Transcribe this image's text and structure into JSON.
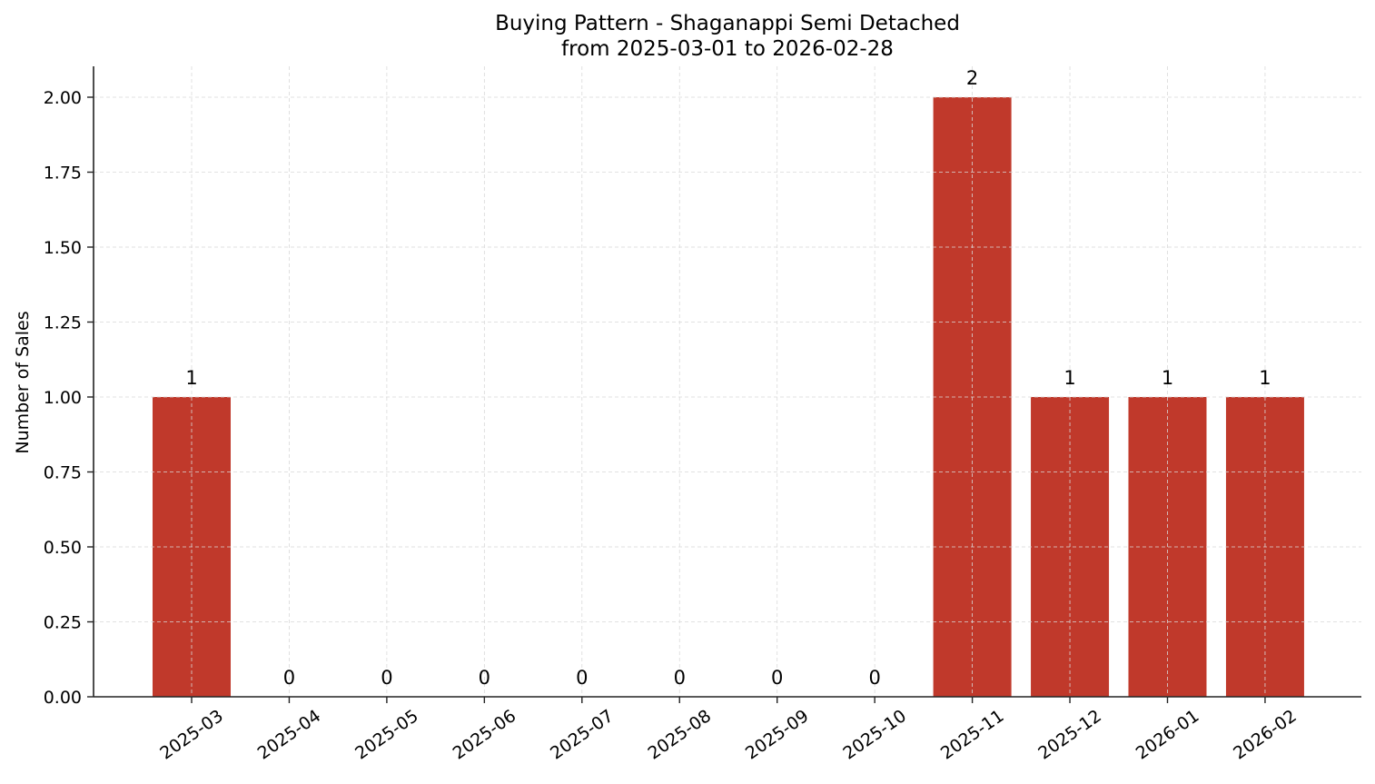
{
  "chart_data": {
    "type": "bar",
    "title": "Buying Pattern - Shaganappi Semi Detached",
    "subtitle": "from 2025-03-01 to 2026-02-28",
    "xlabel": "",
    "ylabel": "Number of Sales",
    "categories": [
      "2025-03",
      "2025-04",
      "2025-05",
      "2025-06",
      "2025-07",
      "2025-08",
      "2025-09",
      "2025-10",
      "2025-11",
      "2025-12",
      "2026-01",
      "2026-02"
    ],
    "values": [
      1,
      0,
      0,
      0,
      0,
      0,
      0,
      0,
      2,
      1,
      1,
      1
    ],
    "data_labels": [
      "1",
      "0",
      "0",
      "0",
      "0",
      "0",
      "0",
      "0",
      "2",
      "1",
      "1",
      "1"
    ],
    "ylim": [
      0,
      2.1
    ],
    "yticks": [
      0.0,
      0.25,
      0.5,
      0.75,
      1.0,
      1.25,
      1.5,
      1.75,
      2.0
    ],
    "ytick_labels": [
      "0.00",
      "0.25",
      "0.50",
      "0.75",
      "1.00",
      "1.25",
      "1.50",
      "1.75",
      "2.00"
    ],
    "grid": true,
    "grid_style": "dashed",
    "legend": null,
    "xtick_rotation": 35,
    "colors": {
      "bar": "#c0392b",
      "grid": "#d9d9d9",
      "axis": "#222222"
    }
  }
}
